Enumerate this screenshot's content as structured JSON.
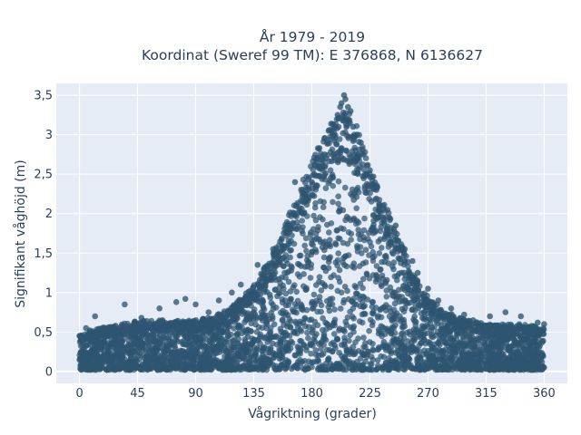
{
  "chart_data": {
    "type": "scatter",
    "title_lines": [
      "År 1979 - 2019",
      "Koordinat (Sweref 99 TM): E 376868, N 6136627"
    ],
    "xlabel": "Vågriktning (grader)",
    "ylabel": "Signifikant våghöjd (m)",
    "xlim": [
      -18,
      378
    ],
    "ylim": [
      -0.15,
      3.65
    ],
    "xticks": [
      0,
      45,
      90,
      135,
      180,
      225,
      270,
      315,
      360
    ],
    "xtick_labels": [
      "0",
      "45",
      "90",
      "135",
      "180",
      "225",
      "270",
      "315",
      "360"
    ],
    "yticks": [
      0,
      0.5,
      1,
      1.5,
      2,
      2.5,
      3,
      3.5
    ],
    "ytick_labels": [
      "0",
      "0,5",
      "1",
      "1,5",
      "2",
      "2,5",
      "3",
      "3,5"
    ],
    "grid": true,
    "marker_color": "#2e5570",
    "envelope": {
      "direction_deg": [
        0,
        15,
        30,
        45,
        60,
        75,
        90,
        105,
        120,
        135,
        150,
        160,
        170,
        180,
        190,
        200,
        205,
        210,
        220,
        230,
        240,
        250,
        260,
        270,
        285,
        300,
        315,
        330,
        345,
        360
      ],
      "max_height_m": [
        0.45,
        0.55,
        0.6,
        0.65,
        0.65,
        0.65,
        0.65,
        0.7,
        0.85,
        1.1,
        1.5,
        1.9,
        2.3,
        2.7,
        3.0,
        3.3,
        3.35,
        3.3,
        2.9,
        2.4,
        2.0,
        1.6,
        1.2,
        0.95,
        0.75,
        0.65,
        0.6,
        0.6,
        0.6,
        0.55
      ]
    },
    "series": [
      {
        "x": [
          0,
          2,
          5,
          8,
          12,
          28,
          35,
          48,
          62,
          75,
          82,
          90,
          100,
          108,
          118,
          125,
          138,
          150,
          162,
          167,
          175,
          180,
          182,
          186,
          190,
          192,
          196,
          198,
          200,
          202,
          203,
          205,
          206,
          207,
          208,
          210,
          212,
          215,
          218,
          220,
          225,
          230,
          235,
          240,
          245,
          252,
          258,
          262,
          270,
          278,
          288,
          298,
          305,
          318,
          330,
          342,
          355,
          360
        ],
        "y": [
          0.45,
          0.4,
          0.55,
          0.52,
          0.7,
          0.58,
          0.85,
          0.68,
          0.8,
          0.88,
          0.92,
          0.85,
          0.75,
          0.9,
          1.0,
          1.1,
          1.35,
          1.55,
          1.85,
          2.4,
          2.25,
          2.4,
          2.5,
          2.6,
          2.75,
          2.9,
          3.0,
          3.1,
          3.25,
          3.35,
          3.4,
          3.5,
          3.45,
          3.2,
          3.35,
          3.3,
          3.1,
          3.0,
          2.9,
          2.75,
          2.55,
          2.3,
          2.1,
          1.95,
          1.85,
          1.55,
          1.4,
          1.25,
          1.05,
          0.9,
          0.8,
          0.72,
          0.65,
          0.7,
          0.75,
          0.7,
          0.62,
          0.6
        ]
      }
    ]
  }
}
